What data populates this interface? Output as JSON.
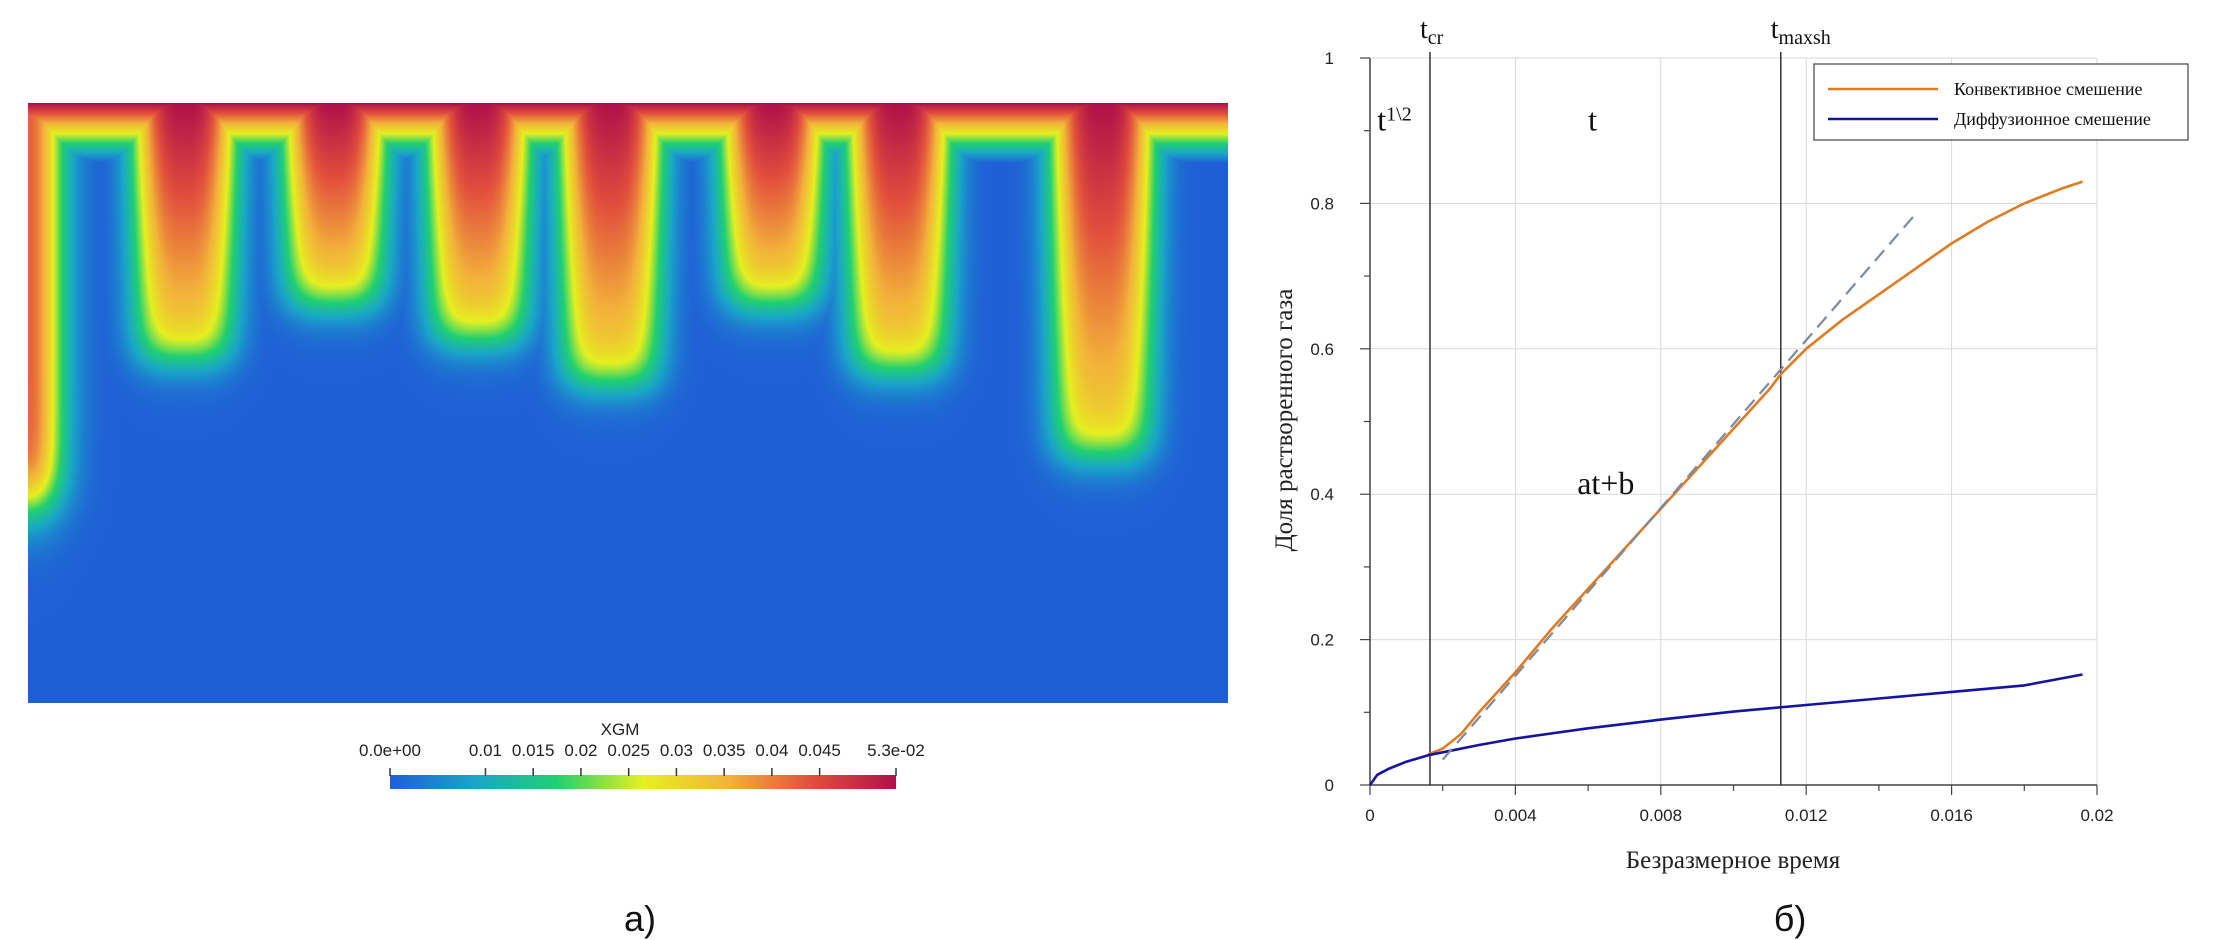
{
  "panels": {
    "left_label": "а)",
    "right_label": "б)"
  },
  "colorbar": {
    "title": "XGM",
    "ticks": [
      {
        "label": "0.0e+00",
        "value": 0
      },
      {
        "label": "0.01",
        "value": 0.01
      },
      {
        "label": "0.015",
        "value": 0.015
      },
      {
        "label": "0.02",
        "value": 0.02
      },
      {
        "label": "0.025",
        "value": 0.025
      },
      {
        "label": "0.03",
        "value": 0.03
      },
      {
        "label": "0.035",
        "value": 0.035
      },
      {
        "label": "0.04",
        "value": 0.04
      },
      {
        "label": "0.045",
        "value": 0.045
      },
      {
        "label": "5.3e-02",
        "value": 0.053
      }
    ],
    "range": [
      0,
      0.053
    ],
    "colors": [
      "#1f5fd6",
      "#1aa6c8",
      "#20d070",
      "#e6f020",
      "#f3b23a",
      "#e2503c",
      "#b0104a"
    ]
  },
  "chart_data": [
    {
      "type": "heatmap",
      "variable": "XGM",
      "range": [
        0,
        0.053
      ],
      "fingers": [
        {
          "x": 0.13,
          "depth": 0.43
        },
        {
          "x": 0.255,
          "depth": 0.34
        },
        {
          "x": 0.375,
          "depth": 0.4
        },
        {
          "x": 0.485,
          "depth": 0.47
        },
        {
          "x": 0.62,
          "depth": 0.34
        },
        {
          "x": 0.725,
          "depth": 0.45
        },
        {
          "x": 0.895,
          "depth": 0.59
        }
      ]
    },
    {
      "type": "line",
      "xlabel": "Безразмерное время",
      "ylabel": "Доля растворенного газа",
      "xlim": [
        0,
        0.02
      ],
      "ylim": [
        0,
        1
      ],
      "xticks": [
        {
          "value": 0,
          "label": "0"
        },
        {
          "value": 0.004,
          "label": "0.004"
        },
        {
          "value": 0.008,
          "label": "0.008"
        },
        {
          "value": 0.012,
          "label": "0.012"
        },
        {
          "value": 0.016,
          "label": "0.016"
        },
        {
          "value": 0.02,
          "label": "0.02"
        }
      ],
      "yticks": [
        {
          "value": 0,
          "label": "0"
        },
        {
          "value": 0.2,
          "label": "0.2"
        },
        {
          "value": 0.4,
          "label": "0.4"
        },
        {
          "value": 0.6,
          "label": "0.6"
        },
        {
          "value": 0.8,
          "label": "0.8"
        },
        {
          "value": 1,
          "label": "1"
        }
      ],
      "grid": true,
      "legend_position": "top-right",
      "series": [
        {
          "name": "Конвективное смешение",
          "color": "#e07b24",
          "x": [
            0.0016,
            0.002,
            0.0025,
            0.003,
            0.004,
            0.005,
            0.006,
            0.007,
            0.008,
            0.009,
            0.01,
            0.011,
            0.0113,
            0.012,
            0.013,
            0.014,
            0.015,
            0.016,
            0.017,
            0.018,
            0.019,
            0.0196
          ],
          "values": [
            0.042,
            0.05,
            0.07,
            0.1,
            0.155,
            0.215,
            0.27,
            0.325,
            0.38,
            0.435,
            0.49,
            0.545,
            0.565,
            0.6,
            0.64,
            0.675,
            0.71,
            0.745,
            0.775,
            0.8,
            0.82,
            0.83
          ]
        },
        {
          "name": "Диффузионное смешение",
          "color": "#1414a0",
          "x": [
            0,
            0.0002,
            0.0005,
            0.001,
            0.0016,
            0.002,
            0.003,
            0.004,
            0.005,
            0.006,
            0.008,
            0.01,
            0.012,
            0.014,
            0.016,
            0.018,
            0.0196
          ],
          "values": [
            0,
            0.014,
            0.022,
            0.032,
            0.041,
            0.045,
            0.055,
            0.064,
            0.071,
            0.078,
            0.09,
            0.101,
            0.11,
            0.119,
            0.128,
            0.137,
            0.152
          ]
        },
        {
          "color": "#7f8a9a",
          "style": "dashed",
          "x": [
            0.002,
            0.015
          ],
          "values": [
            0.035,
            0.785
          ]
        }
      ],
      "vlines": [
        {
          "x": 0.00165,
          "label_main": "t",
          "label_sub": "cr"
        },
        {
          "x": 0.0113,
          "label_main": "t",
          "label_sub": "maxsh"
        }
      ],
      "annotations": [
        {
          "text": "t",
          "sup": "1\\2",
          "x": 0.0002,
          "y": 0.9
        },
        {
          "text": "t",
          "x": 0.006,
          "y": 0.9
        },
        {
          "text": "at+b",
          "x": 0.0057,
          "y": 0.4
        }
      ]
    }
  ]
}
